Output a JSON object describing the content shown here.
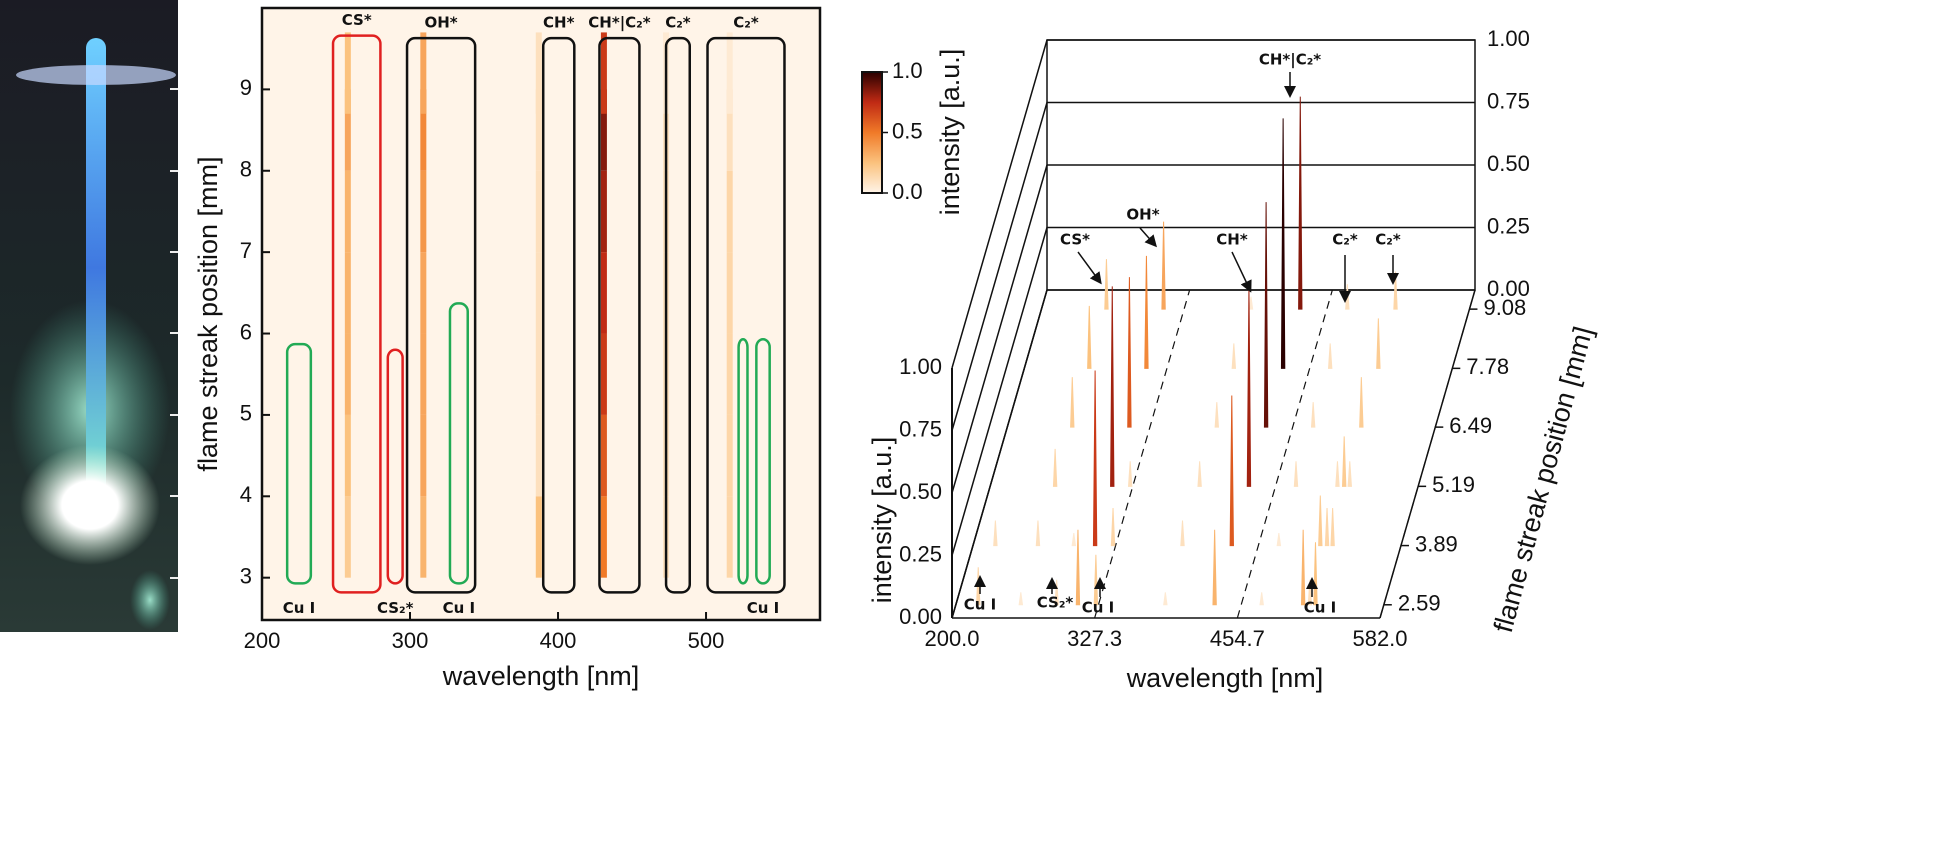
{
  "chart_data": [
    {
      "type": "heatmap",
      "xlabel": "wavelength [nm]",
      "ylabel": "flame streak position [mm]",
      "xlim": [
        200,
        577
      ],
      "ylim": [
        2.48,
        10.0
      ],
      "xticks": [
        200,
        300,
        400,
        500
      ],
      "yticks": [
        3,
        4,
        5,
        6,
        7,
        8,
        9
      ],
      "x": [
        258,
        309,
        387,
        431,
        473,
        516
      ],
      "y": [
        3.5,
        4.5,
        5.5,
        6.5,
        7.5,
        8.5,
        9.2
      ],
      "z": [
        [
          0.2,
          0.3,
          0.25,
          0.5,
          0.1,
          0.15
        ],
        [
          0.25,
          0.35,
          0.1,
          0.6,
          0.1,
          0.15
        ],
        [
          0.3,
          0.35,
          0.1,
          0.7,
          0.1,
          0.15
        ],
        [
          0.3,
          0.35,
          0.1,
          0.75,
          0.1,
          0.15
        ],
        [
          0.3,
          0.4,
          0.1,
          0.8,
          0.1,
          0.15
        ],
        [
          0.35,
          0.45,
          0.1,
          0.85,
          0.1,
          0.1
        ],
        [
          0.25,
          0.35,
          0.1,
          0.7,
          0.05,
          0.05
        ]
      ],
      "colormap": [
        "#fff4e8",
        "#fbc27e",
        "#f07a28",
        "#c02a14",
        "#2a0000"
      ],
      "zlabel": "intensity [a.u.]",
      "zlim": [
        0,
        1
      ],
      "zticks": [
        {
          "value": 0,
          "label": "0.0"
        },
        {
          "value": 0.5,
          "label": "0.5"
        },
        {
          "value": 1,
          "label": "1.0"
        }
      ],
      "regions": [
        {
          "x": [
            217,
            233
          ],
          "y": [
            2.93,
            5.87
          ],
          "color": "#22aa55",
          "label": "Cu I"
        },
        {
          "x": [
            248,
            280
          ],
          "y": [
            2.82,
            9.66
          ],
          "color": "#e02020",
          "label": "CS*"
        },
        {
          "x": [
            285,
            295
          ],
          "y": [
            2.93,
            5.8
          ],
          "color": "#e02020",
          "label": "CS₂*"
        },
        {
          "x": [
            298,
            344
          ],
          "y": [
            2.82,
            9.63
          ],
          "color": "#111111",
          "label": "OH*"
        },
        {
          "x": [
            327,
            339
          ],
          "y": [
            2.93,
            6.37
          ],
          "color": "#22aa55",
          "label": "Cu I"
        },
        {
          "x": [
            390,
            411
          ],
          "y": [
            2.82,
            9.63
          ],
          "color": "#111111",
          "label": "CH*"
        },
        {
          "x": [
            428,
            455
          ],
          "y": [
            2.82,
            9.63
          ],
          "color": "#111111",
          "label": "CH*|C₂*"
        },
        {
          "x": [
            473,
            489
          ],
          "y": [
            2.82,
            9.63
          ],
          "color": "#111111",
          "label": "C₂*"
        },
        {
          "x": [
            501,
            553
          ],
          "y": [
            2.82,
            9.63
          ],
          "color": "#111111",
          "label": "C₂*"
        },
        {
          "x": [
            522,
            528
          ],
          "y": [
            2.93,
            5.93
          ],
          "color": "#22aa55",
          "label": null
        },
        {
          "x": [
            534,
            543
          ],
          "y": [
            2.93,
            5.93
          ],
          "color": "#22aa55",
          "label": "Cu I"
        }
      ]
    },
    {
      "type": "waterfall3d",
      "xlabel": "wavelength [nm]",
      "ylabel": "flame streak position [mm]",
      "zlabel": "intensity [a.u.]",
      "xlim": [
        200,
        582
      ],
      "xticks": [
        {
          "value": 200,
          "label": "200.0"
        },
        {
          "value": 327.3,
          "label": "327.3"
        },
        {
          "value": 454.7,
          "label": "454.7"
        },
        {
          "value": 582,
          "label": "582.0"
        }
      ],
      "ylim": [
        2.3,
        9.5
      ],
      "yticks": [
        2.59,
        3.89,
        5.19,
        6.49,
        7.78,
        9.08
      ],
      "zlim": [
        0,
        1
      ],
      "zticks": [
        {
          "value": 0,
          "label": "0.00"
        },
        {
          "value": 0.25,
          "label": "0.25"
        },
        {
          "value": 0.5,
          "label": "0.50"
        },
        {
          "value": 0.75,
          "label": "0.75"
        },
        {
          "value": 1,
          "label": "1.00"
        }
      ],
      "y": [
        2.59,
        3.89,
        5.19,
        6.49,
        7.78,
        9.08
      ],
      "series": [
        {
          "x": 220,
          "values": [
            0.15,
            0.1,
            0,
            0,
            0,
            0
          ]
        },
        {
          "x": 258,
          "values": [
            0.05,
            0.1,
            0.15,
            0.2,
            0.25,
            0.2
          ]
        },
        {
          "x": 290,
          "values": [
            0.1,
            0.05,
            0,
            0,
            0,
            0
          ]
        },
        {
          "x": 309,
          "values": [
            0.3,
            0.7,
            0.8,
            0.6,
            0.45,
            0.35
          ]
        },
        {
          "x": 325,
          "values": [
            0.2,
            0.15,
            0.1,
            0,
            0,
            0
          ]
        },
        {
          "x": 387,
          "values": [
            0.05,
            0.1,
            0.1,
            0.1,
            0.1,
            0.05
          ]
        },
        {
          "x": 431,
          "values": [
            0.3,
            0.6,
            0.8,
            0.9,
            1.0,
            0.85
          ]
        },
        {
          "x": 473,
          "values": [
            0.05,
            0.05,
            0.1,
            0.1,
            0.1,
            0.1
          ]
        },
        {
          "x": 510,
          "values": [
            0.3,
            0.2,
            0.1,
            0,
            0,
            0
          ]
        },
        {
          "x": 521,
          "values": [
            0.25,
            0.15,
            0.1,
            0,
            0,
            0
          ]
        },
        {
          "x": 516,
          "values": [
            0.1,
            0.15,
            0.2,
            0.2,
            0.2,
            0.15
          ]
        }
      ],
      "annotations": [
        "CH*|C₂*",
        "CS*",
        "OH*",
        "CH*",
        "C₂*",
        "C₂*",
        "Cu I",
        "CS₂*",
        "Cu I",
        "Cu I"
      ]
    }
  ]
}
